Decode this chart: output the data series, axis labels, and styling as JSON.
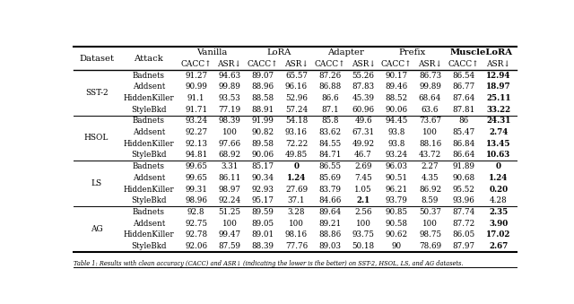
{
  "datasets": [
    "SST-2",
    "HSOL",
    "LS",
    "AG"
  ],
  "attacks": [
    "Badnets",
    "Addsent",
    "HiddenKiller",
    "StyleBkd"
  ],
  "data": {
    "SST-2": {
      "Badnets": [
        91.27,
        94.63,
        89.07,
        65.57,
        87.26,
        55.26,
        90.17,
        86.73,
        86.54,
        "12.94"
      ],
      "Addsent": [
        90.99,
        99.89,
        88.96,
        96.16,
        86.88,
        87.83,
        89.46,
        99.89,
        86.77,
        "18.97"
      ],
      "HiddenKiller": [
        91.1,
        93.53,
        88.58,
        52.96,
        86.6,
        45.39,
        88.52,
        68.64,
        87.64,
        "25.11"
      ],
      "StyleBkd": [
        91.71,
        77.19,
        88.91,
        57.24,
        87.1,
        60.96,
        90.06,
        63.6,
        87.81,
        "33.22"
      ]
    },
    "HSOL": {
      "Badnets": [
        93.24,
        98.39,
        91.99,
        54.18,
        85.8,
        49.6,
        94.45,
        73.67,
        86.0,
        "24.31"
      ],
      "Addsent": [
        92.27,
        100,
        90.82,
        93.16,
        83.62,
        67.31,
        93.8,
        100,
        85.47,
        "2.74"
      ],
      "HiddenKiller": [
        92.13,
        97.66,
        89.58,
        72.22,
        84.55,
        49.92,
        93.8,
        88.16,
        86.84,
        "13.45"
      ],
      "StyleBkd": [
        94.81,
        68.92,
        90.06,
        49.85,
        84.71,
        46.7,
        93.24,
        43.72,
        86.64,
        "10.63"
      ]
    },
    "LS": {
      "Badnets": [
        99.65,
        3.31,
        85.17,
        0,
        86.55,
        2.69,
        96.03,
        2.27,
        91.89,
        "0"
      ],
      "Addsent": [
        99.65,
        86.11,
        90.34,
        1.24,
        85.69,
        7.45,
        90.51,
        4.35,
        90.68,
        "1.24"
      ],
      "HiddenKiller": [
        99.31,
        98.97,
        92.93,
        27.69,
        83.79,
        1.05,
        96.21,
        86.92,
        95.52,
        "0.20"
      ],
      "StyleBkd": [
        98.96,
        92.24,
        95.17,
        37.1,
        84.66,
        2.1,
        93.79,
        8.59,
        93.96,
        "4.28"
      ]
    },
    "AG": {
      "Badnets": [
        92.8,
        51.25,
        89.59,
        3.28,
        89.64,
        2.56,
        90.85,
        50.37,
        87.74,
        "2.35"
      ],
      "Addsent": [
        92.75,
        100,
        89.05,
        100,
        89.21,
        100,
        90.58,
        100,
        87.72,
        "3.90"
      ],
      "HiddenKiller": [
        92.78,
        99.47,
        89.01,
        98.16,
        88.86,
        93.75,
        90.62,
        98.75,
        86.05,
        "17.02"
      ],
      "StyleBkd": [
        92.06,
        87.59,
        88.39,
        77.76,
        89.03,
        50.18,
        90.0,
        78.69,
        87.97,
        "2.67"
      ]
    }
  },
  "bold_muscleLORA_asr": {
    "SST-2": {
      "Badnets": true,
      "Addsent": true,
      "HiddenKiller": true,
      "StyleBkd": true
    },
    "HSOL": {
      "Badnets": true,
      "Addsent": true,
      "HiddenKiller": true,
      "StyleBkd": true
    },
    "LS": {
      "Badnets": true,
      "Addsent": true,
      "HiddenKiller": true,
      "StyleBkd": false
    },
    "AG": {
      "Badnets": true,
      "Addsent": true,
      "HiddenKiller": true,
      "StyleBkd": true
    }
  },
  "bold_adapter_asr": {
    "LS": {
      "StyleBkd": true
    }
  },
  "bold_lora_asr": {
    "LS": {
      "Addsent": true,
      "Badnets": true
    }
  },
  "method_names": [
    "Vanilla",
    "LoRA",
    "Adapter",
    "Prefix",
    "MuscleLoRA"
  ],
  "col_labels": [
    "CACC↑",
    "ASR↓"
  ],
  "caption": "Table 1: Results with clean accuracy (CACC) and ASR↓ (indicating the lower is the better) on SST-2, HSOL, LS, and AG datasets."
}
